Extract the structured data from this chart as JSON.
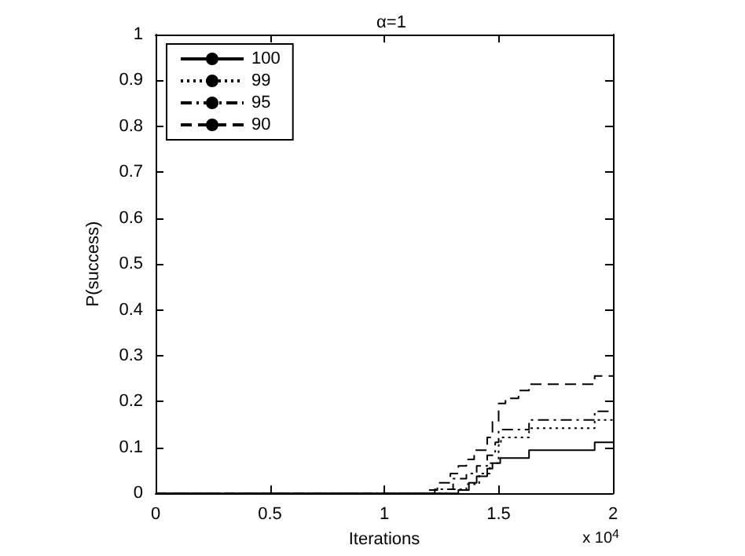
{
  "chart_data": {
    "type": "step",
    "title": "α=1",
    "xlabel": "Iterations",
    "ylabel": "P(success)",
    "xlim": [
      0,
      2
    ],
    "xticks": [
      0,
      0.5,
      1,
      1.5,
      2
    ],
    "ylim": [
      0,
      1
    ],
    "yticks": [
      0,
      0.1,
      0.2,
      0.3,
      0.4,
      0.5,
      0.6,
      0.7,
      0.8,
      0.9,
      1
    ],
    "annotations": [
      "x 10$^{4}$"
    ],
    "grid": false,
    "legend": "top left",
    "marker": "none",
    "series": [
      {
        "name": "100",
        "color": "#000000",
        "line_style": "solid",
        "x": [
          0,
          1.324,
          1.37,
          1.404,
          1.45,
          1.473,
          1.507,
          1.633,
          1.92,
          2
        ],
        "values": [
          0,
          0.007,
          0.023,
          0.037,
          0.054,
          0.066,
          0.077,
          0.094,
          0.111,
          0.111
        ]
      },
      {
        "name": "99",
        "color": "#000000",
        "line_style": "dotted",
        "x": [
          0,
          1.278,
          1.359,
          1.415,
          1.462,
          1.5,
          1.51,
          1.633,
          1.92,
          2
        ],
        "values": [
          0,
          0.009,
          0.02,
          0.043,
          0.066,
          0.105,
          0.122,
          0.142,
          0.16,
          0.16
        ]
      },
      {
        "name": "95",
        "color": "#000000",
        "line_style": "dashdot",
        "x": [
          0,
          1.221,
          1.301,
          1.359,
          1.404,
          1.45,
          1.485,
          1.5,
          1.633,
          1.92,
          2
        ],
        "values": [
          0,
          0.009,
          0.032,
          0.043,
          0.06,
          0.083,
          0.111,
          0.139,
          0.16,
          0.179,
          0.179
        ]
      },
      {
        "name": "90",
        "color": "#000000",
        "line_style": "dashed",
        "x": [
          0,
          1.187,
          1.232,
          1.289,
          1.324,
          1.359,
          1.393,
          1.45,
          1.473,
          1.5,
          1.53,
          1.587,
          1.633,
          1.92,
          2
        ],
        "values": [
          0,
          0.007,
          0.023,
          0.043,
          0.06,
          0.074,
          0.094,
          0.122,
          0.156,
          0.196,
          0.207,
          0.224,
          0.238,
          0.256,
          0.256
        ]
      }
    ]
  }
}
